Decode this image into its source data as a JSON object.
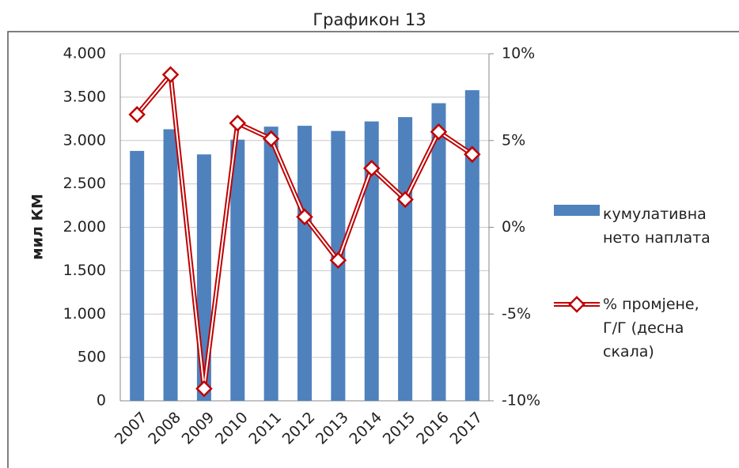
{
  "chart_data": {
    "type": "bar-line",
    "title": "Графикон 13",
    "ylabel": "мил КМ",
    "categories": [
      "2007",
      "2008",
      "2009",
      "2010",
      "2011",
      "2012",
      "2013",
      "2014",
      "2015",
      "2016",
      "2017"
    ],
    "series": [
      {
        "name": "кумулативна нето наплата",
        "color": "#4f81bd",
        "type": "bar",
        "values": [
          2880,
          3130,
          2840,
          3010,
          3160,
          3170,
          3110,
          3220,
          3270,
          3430,
          3580
        ]
      },
      {
        "name": "% промјене, Г/Г (десна скала)",
        "color": "#c00000",
        "type": "line",
        "axis": "y2",
        "values": [
          6.5,
          8.8,
          -9.3,
          6.0,
          5.1,
          0.6,
          -1.9,
          3.4,
          1.6,
          5.5,
          4.2
        ]
      }
    ],
    "ylim": [
      0,
      4000
    ],
    "yticks": [
      {
        "value": 0,
        "label": "0"
      },
      {
        "value": 500,
        "label": "500"
      },
      {
        "value": 1000,
        "label": "1.000"
      },
      {
        "value": 1500,
        "label": "1.500"
      },
      {
        "value": 2000,
        "label": "2.000"
      },
      {
        "value": 2500,
        "label": "2.500"
      },
      {
        "value": 3000,
        "label": "3.000"
      },
      {
        "value": 3500,
        "label": "3.500"
      },
      {
        "value": 4000,
        "label": "4.000"
      }
    ],
    "y2lim": [
      -10,
      10
    ],
    "y2ticks": [
      {
        "value": -10,
        "label": "-10%"
      },
      {
        "value": -5,
        "label": "-5%"
      },
      {
        "value": 0,
        "label": "0%"
      },
      {
        "value": 5,
        "label": "5%"
      },
      {
        "value": 10,
        "label": "10%"
      }
    ],
    "grid": true
  }
}
